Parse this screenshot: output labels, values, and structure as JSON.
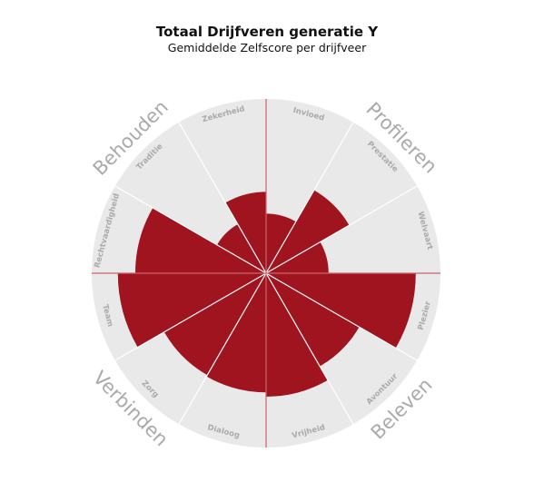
{
  "chart_data": {
    "type": "polar-area",
    "title": "Totaal Drijfveren generatie Y",
    "subtitle": "Gemiddelde Zelfscore per drijfveer",
    "categories": [
      "Invloed",
      "Prestatie",
      "Welvaart",
      "Plezier",
      "Avontuur",
      "Vrijheid",
      "Dialoog",
      "Zorg",
      "Team",
      "Rechtvaardigheid",
      "Traditie",
      "Zekerheid"
    ],
    "values": [
      4.1,
      6.6,
      4.3,
      10.3,
      7.4,
      8.5,
      8.2,
      8.1,
      10.2,
      9.0,
      3.9,
      5.6
    ],
    "rmax": 12,
    "groups": [
      "Profileren",
      "Beleven",
      "Verbinden",
      "Behouden"
    ],
    "colors": {
      "bar": "#a01420",
      "background": "#e9e9e9",
      "divider": "#ffffff",
      "axis": "#c9636b",
      "label": "#aaaaaa"
    },
    "grid": false,
    "legend": "none"
  }
}
